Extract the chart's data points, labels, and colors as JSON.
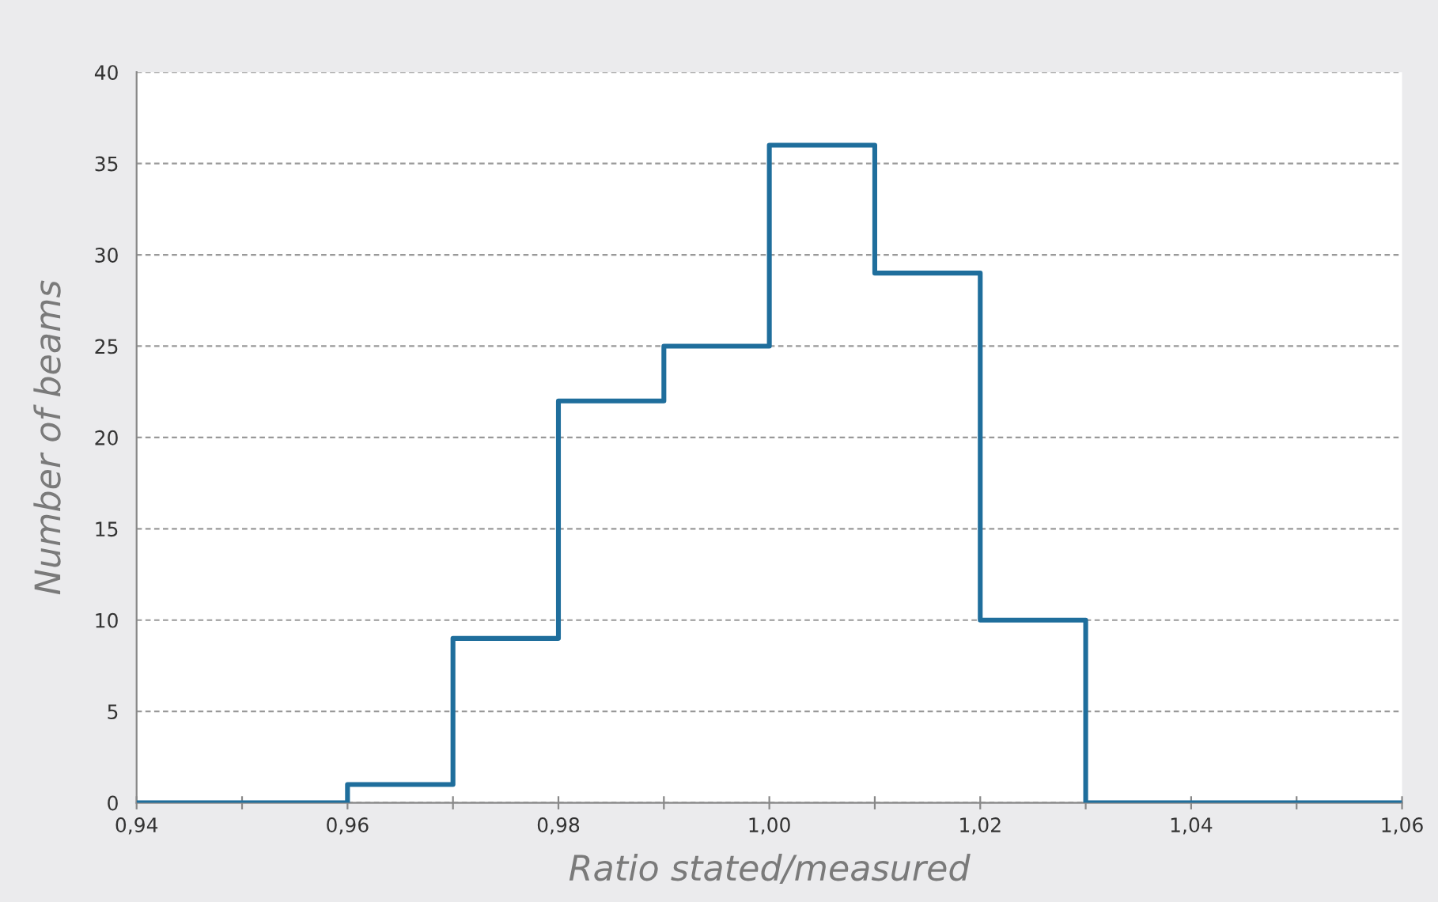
{
  "chart_data": {
    "type": "histogram",
    "xlabel": "Ratio stated/measured",
    "ylabel": "Number of beams",
    "bins": [
      0.94,
      0.95,
      0.96,
      0.97,
      0.98,
      0.99,
      1.0,
      1.01,
      1.02,
      1.03,
      1.04,
      1.05,
      1.06
    ],
    "values": [
      0,
      0,
      1,
      9,
      22,
      25,
      36,
      29,
      10,
      0,
      0,
      0
    ],
    "color": "#1f6e9c",
    "xlim": [
      0.94,
      1.06
    ],
    "xticks": [
      {
        "value": 0.94,
        "label": "0,94"
      },
      {
        "value": 0.95,
        "label": null
      },
      {
        "value": 0.96,
        "label": "0,96"
      },
      {
        "value": 0.97,
        "label": null
      },
      {
        "value": 0.98,
        "label": "0,98"
      },
      {
        "value": 0.99,
        "label": null
      },
      {
        "value": 1.0,
        "label": "1,00"
      },
      {
        "value": 1.01,
        "label": null
      },
      {
        "value": 1.02,
        "label": "1,02"
      },
      {
        "value": 1.03,
        "label": null
      },
      {
        "value": 1.04,
        "label": "1,04"
      },
      {
        "value": 1.05,
        "label": null
      },
      {
        "value": 1.06,
        "label": "1,06"
      }
    ],
    "ylim": [
      0,
      40
    ],
    "yticks": [
      0,
      5,
      10,
      15,
      20,
      25,
      30,
      35,
      40
    ],
    "grid": "y",
    "line_style": "solid"
  }
}
